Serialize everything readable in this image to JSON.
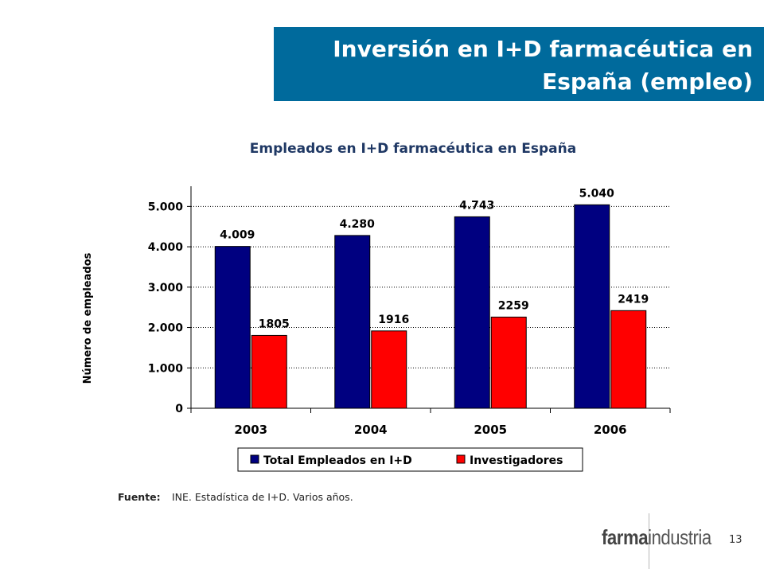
{
  "slide": {
    "title_line1": "Inversión en I+D farmacéutica en",
    "title_line2": "España (empleo)",
    "source_label": "Fuente:",
    "source_text": "INE. Estadística de I+D. Varios años.",
    "logo_bold": "farma",
    "logo_light": "industria",
    "page_number": "13"
  },
  "colors": {
    "title_bg": "#006a9c",
    "chart_title": "#1f3864",
    "series_total": "#000080",
    "series_investigadores": "#ff0000"
  },
  "chart_data": {
    "type": "bar",
    "title": "Empleados en I+D farmacéutica en España",
    "xlabel": "",
    "ylabel": "Número de empleados",
    "categories": [
      "2003",
      "2004",
      "2005",
      "2006"
    ],
    "series": [
      {
        "name": "Total Empleados en I+D",
        "values": [
          4009,
          4280,
          4743,
          5040
        ],
        "labels": [
          "4.009",
          "4.280",
          "4.743",
          "5.040"
        ]
      },
      {
        "name": "Investigadores",
        "values": [
          1805,
          1916,
          2259,
          2419
        ],
        "labels": [
          "1805",
          "1916",
          "2259",
          "2419"
        ]
      }
    ],
    "ylim": [
      0,
      5500
    ],
    "yticks": [
      0,
      1000,
      2000,
      3000,
      4000,
      5000
    ],
    "ytick_labels": [
      "0",
      "1.000",
      "2.000",
      "3.000",
      "4.000",
      "5.000"
    ],
    "grid": "horizontal dotted",
    "legend_position": "bottom"
  }
}
